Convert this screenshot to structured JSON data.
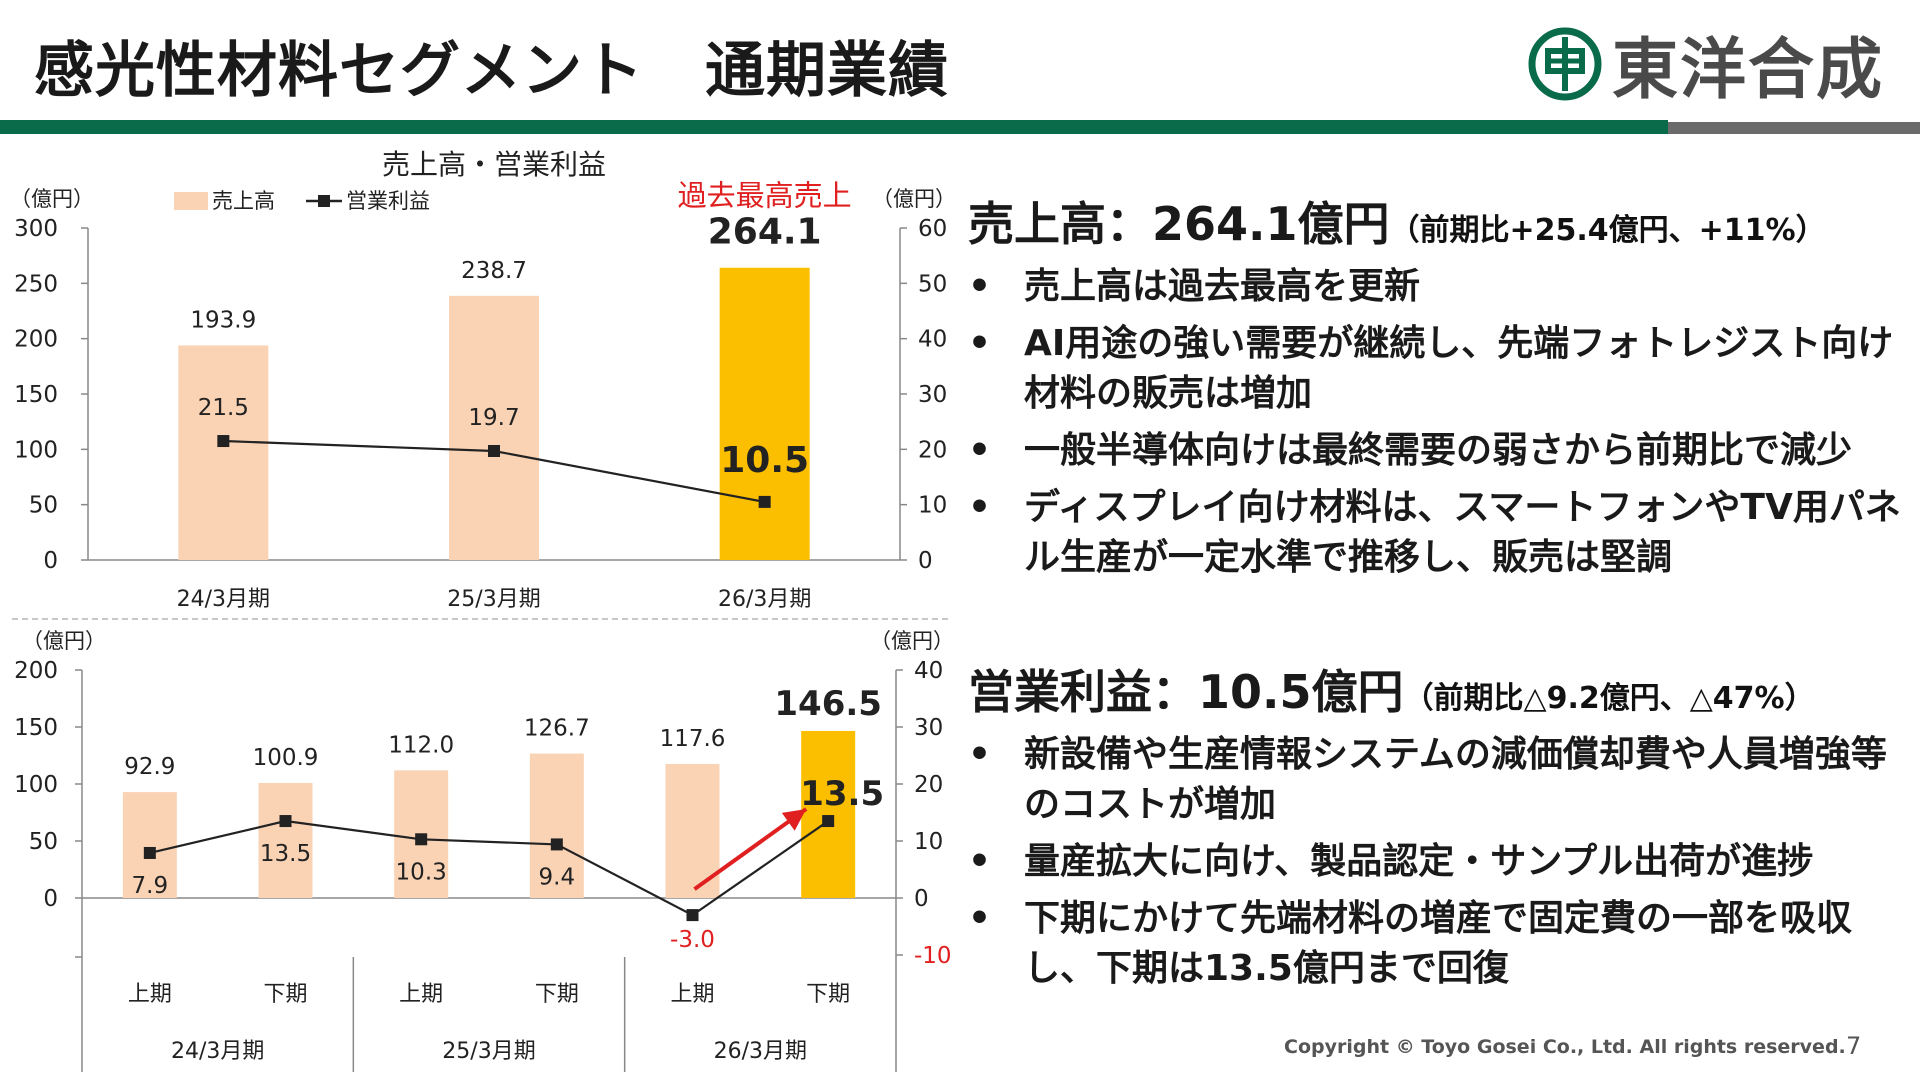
{
  "header": {
    "title": "感光性材料セグメント　通期業績",
    "logo_text": "東洋合成"
  },
  "colors": {
    "brand_green": "#0a6b4b",
    "sales_bar": "#fad3b5",
    "record_bar": "#fcbf00",
    "highlight_red": "#e02020"
  },
  "top_chart": {
    "title": "売上高・営業利益",
    "left_unit": "（億円）",
    "right_unit": "（億円）",
    "legend_sales": "売上高",
    "legend_profit": "営業利益",
    "record_label": "過去最高売上"
  },
  "bottom_chart": {
    "left_unit": "（億円）",
    "right_unit": "（億円）"
  },
  "chart_data": [
    {
      "type": "bar",
      "title": "売上高・営業利益",
      "categories": [
        "24/3月期",
        "25/3月期",
        "26/3月期"
      ],
      "series": [
        {
          "name": "売上高",
          "type": "bar",
          "axis": "left",
          "values": [
            193.9,
            238.7,
            264.1
          ]
        },
        {
          "name": "営業利益",
          "type": "line",
          "axis": "right",
          "values": [
            21.5,
            19.7,
            10.5
          ]
        }
      ],
      "ylim_left": [
        0,
        300
      ],
      "yticks_left": [
        0,
        50,
        100,
        150,
        200,
        250,
        300
      ],
      "ylim_right": [
        0,
        60
      ],
      "yticks_right": [
        0,
        10,
        20,
        30,
        40,
        50,
        60
      ],
      "highlight_index": 2
    },
    {
      "type": "bar",
      "categories": [
        "上期",
        "下期",
        "上期",
        "下期",
        "上期",
        "下期"
      ],
      "groups": [
        "24/3月期",
        "25/3月期",
        "26/3月期"
      ],
      "series": [
        {
          "name": "売上高",
          "type": "bar",
          "axis": "left",
          "values": [
            92.9,
            100.9,
            112.0,
            126.7,
            117.6,
            146.5
          ]
        },
        {
          "name": "営業利益",
          "type": "line",
          "axis": "right",
          "values": [
            7.9,
            13.5,
            10.3,
            9.4,
            -3.0,
            13.5
          ]
        }
      ],
      "ylim_left": [
        0,
        200
      ],
      "yticks_left": [
        0,
        50,
        100,
        150,
        200
      ],
      "ylim_right": [
        -10,
        40
      ],
      "yticks_right": [
        -10,
        0,
        10,
        20,
        30,
        40
      ],
      "highlight_index": 5
    }
  ],
  "summary_sales": {
    "heading": "売上高：264.1億円",
    "note": "（前期比+25.4億円、+11%）",
    "bullet_marker": "•",
    "bullets": [
      "売上高は過去最高を更新",
      "AI用途の強い需要が継続し、先端フォトレジスト向け材料の販売は増加",
      "一般半導体向けは最終需要の弱さから前期比で減少",
      "ディスプレイ向け材料は、スマートフォンやTV用パネル生産が一定水準で推移し、販売は堅調"
    ]
  },
  "summary_profit": {
    "heading": "営業利益：10.5億円",
    "note": "（前期比△9.2億円、△47%）",
    "bullet_marker": "•",
    "bullets": [
      "新設備や生産情報システムの減価償却費や人員増強等のコストが増加",
      "量産拡大に向け、製品認定・サンプル出荷が進捗",
      "下期にかけて先端材料の増産で固定費の一部を吸収し、下期は13.5億円まで回復"
    ]
  },
  "footer": {
    "copyright": "Copyright © Toyo Gosei Co., Ltd. All rights reserved.",
    "page_number": "7"
  }
}
